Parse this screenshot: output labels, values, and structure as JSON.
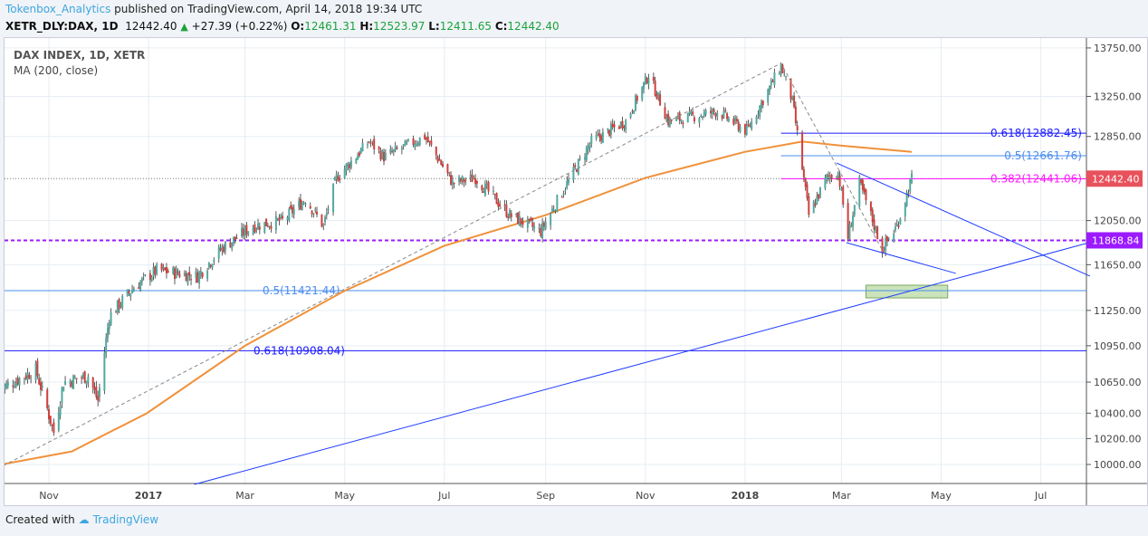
{
  "header": {
    "user": "Tokenbox_Analytics",
    "published": " published on TradingView.com, April 14, 2018 19:34 UTC",
    "symbol": "XETR_DLY:DAX, 1D",
    "last": "12442.40",
    "change": "+27.39 (+0.22%)",
    "o_label": "O:",
    "o": "12461.31",
    "h_label": "H:",
    "h": "12523.97",
    "l_label": "L:",
    "l": "12411.65",
    "c_label": "C:",
    "c": "12442.40"
  },
  "legend": {
    "title": "DAX INDEX, 1D, XETR",
    "indicator": "MA (200, close)"
  },
  "footer": {
    "created": "Created with",
    "brand": "TradingView"
  },
  "colors": {
    "up": "#53a9a0",
    "down": "#d0403c",
    "ma": "#f0913a",
    "fib_618": "#1a1aff",
    "fib_5": "#4a8cf0",
    "fib_382": "#ff1aff",
    "support": "#9b1aff",
    "last_price": "#e8525c",
    "trend": "#1e3cff",
    "zone": "#a9d18e"
  },
  "chart_data": {
    "type": "candlestick",
    "scale": "log",
    "grid": true,
    "ylim": [
      9850,
      13900
    ],
    "y_ticks": [
      "13750.00",
      "13250.00",
      "12850.00",
      "12050.00",
      "11650.00",
      "11250.00",
      "10950.00",
      "10650.00",
      "10400.00",
      "10200.00",
      "10000.00"
    ],
    "x_ticks": [
      "Nov",
      "2017",
      "Mar",
      "May",
      "Jul",
      "Sep",
      "Nov",
      "2018",
      "Mar",
      "May",
      "Jul"
    ],
    "x_tick_dates": [
      "2016-11-01",
      "2017-01-01",
      "2017-03-01",
      "2017-05-01",
      "2017-07-01",
      "2017-09-01",
      "2017-11-01",
      "2018-01-01",
      "2018-03-01",
      "2018-05-01",
      "2018-07-01"
    ],
    "close_path": [
      [
        "2016-10-03",
        10600
      ],
      [
        "2016-10-10",
        10650
      ],
      [
        "2016-10-24",
        10750
      ],
      [
        "2016-11-04",
        10250
      ],
      [
        "2016-11-10",
        10650
      ],
      [
        "2016-11-25",
        10700
      ],
      [
        "2016-12-01",
        10500
      ],
      [
        "2016-12-08",
        11200
      ],
      [
        "2016-12-23",
        11450
      ],
      [
        "2017-01-06",
        11600
      ],
      [
        "2017-01-31",
        11550
      ],
      [
        "2017-02-15",
        11800
      ],
      [
        "2017-03-06",
        12000
      ],
      [
        "2017-03-24",
        12050
      ],
      [
        "2017-04-07",
        12250
      ],
      [
        "2017-04-18",
        12000
      ],
      [
        "2017-04-26",
        12450
      ],
      [
        "2017-05-16",
        12800
      ],
      [
        "2017-05-25",
        12650
      ],
      [
        "2017-06-19",
        12850
      ],
      [
        "2017-07-06",
        12400
      ],
      [
        "2017-07-20",
        12450
      ],
      [
        "2017-08-10",
        12100
      ],
      [
        "2017-08-29",
        11950
      ],
      [
        "2017-09-05",
        12150
      ],
      [
        "2017-09-29",
        12800
      ],
      [
        "2017-10-20",
        13000
      ],
      [
        "2017-11-03",
        13470
      ],
      [
        "2017-11-15",
        13000
      ],
      [
        "2017-12-01",
        13050
      ],
      [
        "2017-12-15",
        13100
      ],
      [
        "2018-01-02",
        12900
      ],
      [
        "2018-01-23",
        13560
      ],
      [
        "2018-01-30",
        13200
      ],
      [
        "2018-02-09",
        12100
      ],
      [
        "2018-02-20",
        12450
      ],
      [
        "2018-02-27",
        12500
      ],
      [
        "2018-03-05",
        11900
      ],
      [
        "2018-03-12",
        12400
      ],
      [
        "2018-03-26",
        11790
      ],
      [
        "2018-04-04",
        12000
      ],
      [
        "2018-04-13",
        12442.4
      ]
    ],
    "last_price": "12442.40",
    "ma200": [
      [
        "2016-10-03",
        10000
      ],
      [
        "2016-11-15",
        10100
      ],
      [
        "2016-12-31",
        10400
      ],
      [
        "2017-03-01",
        10950
      ],
      [
        "2017-05-01",
        11420
      ],
      [
        "2017-07-01",
        11820
      ],
      [
        "2017-09-01",
        12100
      ],
      [
        "2017-11-01",
        12450
      ],
      [
        "2018-01-01",
        12700
      ],
      [
        "2018-02-05",
        12800
      ],
      [
        "2018-03-01",
        12760
      ],
      [
        "2018-04-13",
        12700
      ]
    ],
    "horizontal_levels": [
      {
        "label": "0.618(12882.45)",
        "value": 12882.45,
        "from": "2018-01-23",
        "color": "fib_618"
      },
      {
        "label": "0.5(12661.76)",
        "value": 12661.76,
        "from": "2018-01-23",
        "color": "fib_5"
      },
      {
        "label": "0.382(12441.06)",
        "value": 12441.06,
        "from": "2018-01-23",
        "color": "fib_382"
      },
      {
        "label": "0.5(11421.44)",
        "value": 11421.44,
        "from": "2016-10-01",
        "color": "fib_5"
      },
      {
        "label": "0.618(10908.04)",
        "value": 10908.04,
        "from": "2016-10-01",
        "color": "fib_618"
      }
    ],
    "support_level": "11868.84",
    "trendlines": [
      {
        "style": "dashed-gray",
        "points": [
          [
            "2016-10-04",
            9990
          ],
          [
            "2018-01-23",
            13590
          ],
          [
            "2018-03-26",
            11780
          ]
        ]
      },
      {
        "style": "trend",
        "points": [
          [
            "2017-01-29",
            9849
          ],
          [
            "2018-07-31",
            11850
          ]
        ]
      },
      {
        "style": "trend",
        "points": [
          [
            "2018-02-26",
            12592
          ],
          [
            "2018-07-31",
            11549
          ]
        ]
      },
      {
        "style": "trend",
        "points": [
          [
            "2018-03-04",
            11848
          ],
          [
            "2018-05-10",
            11573
          ]
        ]
      }
    ],
    "zone": {
      "from": "2018-03-16",
      "to": "2018-05-05",
      "low": 11358,
      "high": 11469
    }
  }
}
